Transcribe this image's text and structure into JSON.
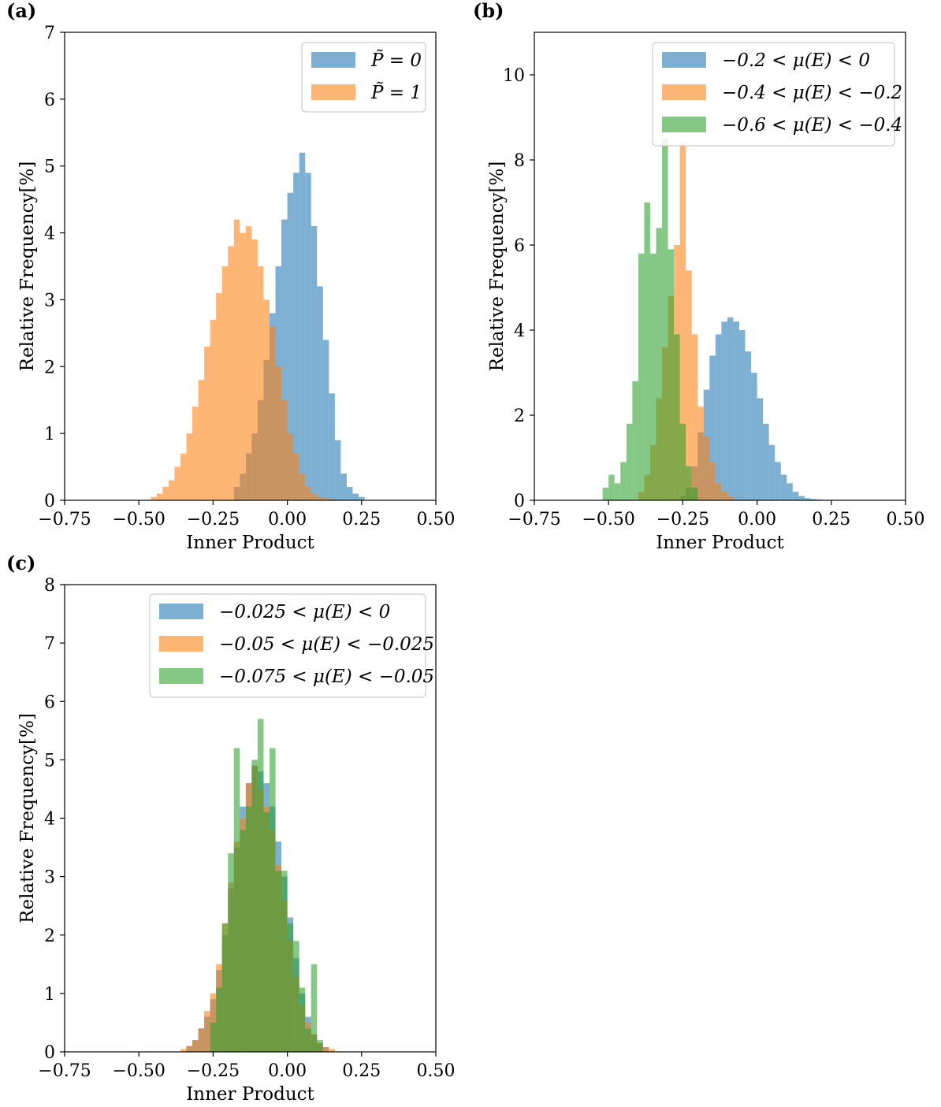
{
  "colors": {
    "blue": "#1f77b4",
    "orange": "#ff7f0e",
    "green": "#2ca02c"
  },
  "chart_data": [
    {
      "panel_label": "(a)",
      "type": "histogram",
      "xlabel": "Inner Product",
      "ylabel": "Relative Frequency[%]",
      "xlim": [
        -0.75,
        0.5
      ],
      "ylim": [
        0,
        7
      ],
      "x_ticks": [
        "−0.75",
        "−0.50",
        "−0.25",
        "0.00",
        "0.25",
        "0.50"
      ],
      "y_ticks": [
        "0",
        "1",
        "2",
        "3",
        "4",
        "5",
        "6",
        "7"
      ],
      "legend_position": "top-right",
      "series": [
        {
          "name": "P̃ = 0",
          "color": "blue",
          "x": [
            -0.17,
            -0.15,
            -0.13,
            -0.11,
            -0.09,
            -0.07,
            -0.05,
            -0.03,
            -0.01,
            0.01,
            0.03,
            0.05,
            0.07,
            0.09,
            0.11,
            0.13,
            0.15,
            0.17,
            0.19,
            0.21,
            0.23,
            0.25
          ],
          "values": [
            0.2,
            0.4,
            0.7,
            1.0,
            1.5,
            2.1,
            2.8,
            3.5,
            4.2,
            4.6,
            4.9,
            5.2,
            4.9,
            4.1,
            3.2,
            2.4,
            1.6,
            0.9,
            0.4,
            0.2,
            0.1,
            0.05
          ]
        },
        {
          "name": "P̃ = 1",
          "color": "orange",
          "x": [
            -0.45,
            -0.43,
            -0.41,
            -0.39,
            -0.37,
            -0.35,
            -0.33,
            -0.31,
            -0.29,
            -0.27,
            -0.25,
            -0.23,
            -0.21,
            -0.19,
            -0.17,
            -0.15,
            -0.13,
            -0.11,
            -0.09,
            -0.07,
            -0.05,
            -0.03,
            -0.01,
            0.01,
            0.03,
            0.05,
            0.07,
            0.09,
            0.11,
            0.13,
            0.15
          ],
          "values": [
            0.05,
            0.1,
            0.2,
            0.3,
            0.5,
            0.7,
            1.0,
            1.4,
            1.8,
            2.3,
            2.7,
            3.1,
            3.5,
            3.8,
            4.2,
            4.0,
            4.1,
            3.9,
            3.5,
            3.0,
            2.6,
            2.0,
            1.5,
            1.0,
            0.7,
            0.4,
            0.2,
            0.1,
            0.05,
            0.03,
            0.02
          ]
        }
      ]
    },
    {
      "panel_label": "(b)",
      "type": "histogram",
      "xlabel": "Inner Product",
      "ylabel": "Relative Frequency[%]",
      "xlim": [
        -0.75,
        0.5
      ],
      "ylim": [
        0,
        11
      ],
      "x_ticks": [
        "−0.75",
        "−0.50",
        "−0.25",
        "0.00",
        "0.25",
        "0.50"
      ],
      "y_ticks": [
        "0",
        "2",
        "4",
        "6",
        "8",
        "10"
      ],
      "legend_position": "top-right",
      "series": [
        {
          "name": "−0.2 < μ(E) < 0",
          "color": "blue",
          "x": [
            -0.25,
            -0.23,
            -0.21,
            -0.19,
            -0.17,
            -0.15,
            -0.13,
            -0.11,
            -0.09,
            -0.07,
            -0.05,
            -0.03,
            -0.01,
            0.01,
            0.03,
            0.05,
            0.07,
            0.09,
            0.11,
            0.13,
            0.15,
            0.17,
            0.19,
            0.21
          ],
          "values": [
            0.1,
            0.3,
            0.8,
            1.6,
            2.6,
            3.4,
            3.9,
            4.2,
            4.3,
            4.2,
            4.0,
            3.5,
            3.0,
            2.4,
            1.8,
            1.3,
            0.9,
            0.6,
            0.4,
            0.2,
            0.1,
            0.05,
            0.03,
            0.02
          ]
        },
        {
          "name": "−0.4 < μ(E) < −0.2",
          "color": "orange",
          "x": [
            -0.39,
            -0.37,
            -0.35,
            -0.33,
            -0.31,
            -0.29,
            -0.27,
            -0.25,
            -0.23,
            -0.21,
            -0.19,
            -0.17,
            -0.15,
            -0.13,
            -0.11,
            -0.09
          ],
          "values": [
            0.2,
            0.6,
            1.3,
            2.4,
            3.6,
            4.8,
            6.0,
            8.4,
            5.4,
            3.9,
            2.2,
            1.5,
            0.9,
            0.4,
            0.2,
            0.1
          ]
        },
        {
          "name": "−0.6 < μ(E) < −0.4",
          "color": "green",
          "x": [
            -0.51,
            -0.49,
            -0.47,
            -0.45,
            -0.43,
            -0.41,
            -0.39,
            -0.37,
            -0.35,
            -0.33,
            -0.31,
            -0.29,
            -0.27,
            -0.25,
            -0.23,
            -0.21
          ],
          "values": [
            0.3,
            0.6,
            0.4,
            0.9,
            1.8,
            2.8,
            5.8,
            7.0,
            5.8,
            6.4,
            8.5,
            5.9,
            3.9,
            1.8,
            0.8,
            0.3
          ]
        }
      ]
    },
    {
      "panel_label": "(c)",
      "type": "histogram",
      "xlabel": "Inner Product",
      "ylabel": "Relative Frequency[%]",
      "xlim": [
        -0.75,
        0.5
      ],
      "ylim": [
        0,
        8
      ],
      "x_ticks": [
        "−0.75",
        "−0.50",
        "−0.25",
        "0.00",
        "0.25",
        "0.50"
      ],
      "y_ticks": [
        "0",
        "1",
        "2",
        "3",
        "4",
        "5",
        "6",
        "7",
        "8"
      ],
      "legend_position": "top-right",
      "series": [
        {
          "name": "−0.025 < μ(E) < 0",
          "color": "blue",
          "x": [
            -0.33,
            -0.31,
            -0.29,
            -0.27,
            -0.25,
            -0.23,
            -0.21,
            -0.19,
            -0.17,
            -0.15,
            -0.13,
            -0.11,
            -0.09,
            -0.07,
            -0.05,
            -0.03,
            -0.01,
            0.01,
            0.03,
            0.05,
            0.07,
            0.09,
            0.11,
            0.13
          ],
          "values": [
            0.1,
            0.2,
            0.4,
            0.6,
            0.9,
            1.4,
            2.0,
            2.8,
            3.5,
            4.2,
            4.6,
            4.9,
            4.8,
            4.6,
            4.2,
            3.6,
            3.0,
            2.3,
            1.6,
            1.0,
            0.6,
            0.3,
            0.15,
            0.08
          ]
        },
        {
          "name": "−0.05 < μ(E) < −0.025",
          "color": "orange",
          "x": [
            -0.35,
            -0.33,
            -0.31,
            -0.29,
            -0.27,
            -0.25,
            -0.23,
            -0.21,
            -0.19,
            -0.17,
            -0.15,
            -0.13,
            -0.11,
            -0.09,
            -0.07,
            -0.05,
            -0.03,
            -0.01,
            0.01,
            0.03,
            0.05,
            0.07,
            0.09,
            0.11,
            0.13,
            0.15
          ],
          "values": [
            0.05,
            0.1,
            0.2,
            0.4,
            0.7,
            1.0,
            1.5,
            2.2,
            2.9,
            3.6,
            4.0,
            4.6,
            4.9,
            4.5,
            4.2,
            3.8,
            3.2,
            2.6,
            1.9,
            1.3,
            0.8,
            0.5,
            0.3,
            0.15,
            0.08,
            0.05
          ]
        },
        {
          "name": "−0.075 < μ(E) < −0.05",
          "color": "green",
          "x": [
            -0.25,
            -0.23,
            -0.21,
            -0.19,
            -0.17,
            -0.15,
            -0.13,
            -0.11,
            -0.09,
            -0.07,
            -0.05,
            -0.03,
            -0.01,
            0.01,
            0.03,
            0.05,
            0.07,
            0.09,
            0.11
          ],
          "values": [
            0.5,
            1.1,
            2.2,
            3.4,
            5.2,
            3.8,
            4.2,
            5.0,
            5.7,
            4.1,
            5.2,
            3.1,
            3.1,
            2.2,
            1.9,
            1.1,
            0.4,
            1.5,
            0.2
          ]
        }
      ]
    }
  ]
}
